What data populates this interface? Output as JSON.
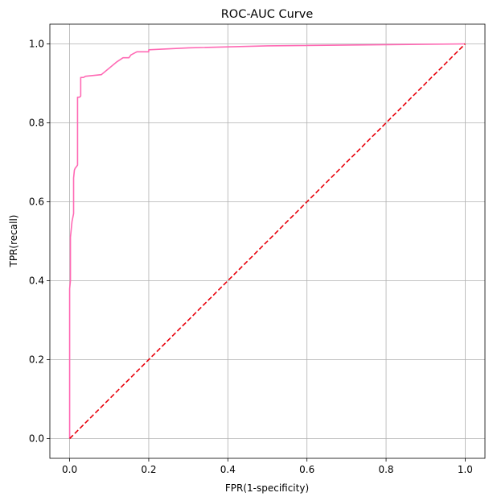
{
  "chart_data": {
    "type": "line",
    "title": "ROC-AUC Curve",
    "xlabel": "FPR(1-specificity)",
    "ylabel": "TPR(recall)",
    "xlim": [
      -0.05,
      1.05
    ],
    "ylim": [
      -0.05,
      1.05
    ],
    "x_ticks": [
      "0.0",
      "0.2",
      "0.4",
      "0.6",
      "0.8",
      "1.0"
    ],
    "y_ticks": [
      "0.0",
      "0.2",
      "0.4",
      "0.6",
      "0.8",
      "1.0"
    ],
    "grid": true,
    "series": [
      {
        "style": "solid",
        "color": "#ff69b4",
        "x": [
          0.0,
          0.0,
          0.002,
          0.002,
          0.004,
          0.006,
          0.008,
          0.01,
          0.01,
          0.012,
          0.014,
          0.018,
          0.02,
          0.02,
          0.02,
          0.025,
          0.028,
          0.028,
          0.035,
          0.04,
          0.08,
          0.12,
          0.135,
          0.15,
          0.155,
          0.17,
          0.2,
          0.2,
          0.3,
          0.5,
          1.0
        ],
        "y": [
          0.0,
          0.38,
          0.4,
          0.51,
          0.53,
          0.55,
          0.56,
          0.57,
          0.66,
          0.68,
          0.685,
          0.69,
          0.693,
          0.8,
          0.865,
          0.865,
          0.868,
          0.915,
          0.915,
          0.918,
          0.922,
          0.955,
          0.965,
          0.965,
          0.972,
          0.98,
          0.98,
          0.985,
          0.99,
          0.995,
          1.0
        ]
      },
      {
        "style": "dashed",
        "color": "#e8000b",
        "x": [
          0.0,
          1.0
        ],
        "y": [
          0.0,
          1.0
        ]
      }
    ]
  }
}
